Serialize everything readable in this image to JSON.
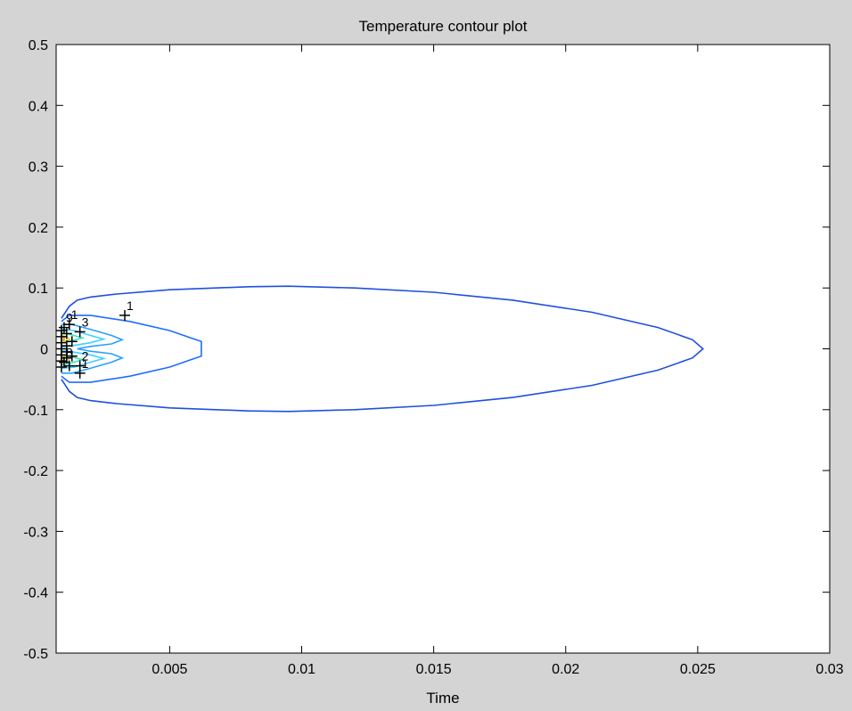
{
  "chart_data": {
    "type": "contour",
    "title": "Temperature contour plot",
    "xlabel": "Time",
    "ylabel": "",
    "xlim": [
      0.0007,
      0.03
    ],
    "ylim": [
      -0.5,
      0.5
    ],
    "x_ticks": [
      {
        "value": 0.005,
        "label": "0.005"
      },
      {
        "value": 0.01,
        "label": "0.01"
      },
      {
        "value": 0.015,
        "label": "0.015"
      },
      {
        "value": 0.02,
        "label": "0.02"
      },
      {
        "value": 0.025,
        "label": "0.025"
      },
      {
        "value": 0.03,
        "label": "0.03"
      }
    ],
    "y_ticks": [
      {
        "value": 0.5,
        "label": "0.5"
      },
      {
        "value": 0.4,
        "label": "0.4"
      },
      {
        "value": 0.3,
        "label": "0.3"
      },
      {
        "value": 0.2,
        "label": "0.2"
      },
      {
        "value": 0.1,
        "label": "0.1"
      },
      {
        "value": 0,
        "label": "0"
      },
      {
        "value": -0.1,
        "label": "-0.1"
      },
      {
        "value": -0.2,
        "label": "-0.2"
      },
      {
        "value": -0.3,
        "label": "-0.3"
      },
      {
        "value": -0.4,
        "label": "-0.4"
      },
      {
        "value": -0.5,
        "label": "-0.5"
      }
    ],
    "grid": false,
    "contours": [
      {
        "color": "#1f4fe0",
        "points": [
          [
            0.0009,
            0.05
          ],
          [
            0.0012,
            0.07
          ],
          [
            0.0015,
            0.08
          ],
          [
            0.002,
            0.085
          ],
          [
            0.003,
            0.09
          ],
          [
            0.005,
            0.097
          ],
          [
            0.008,
            0.102
          ],
          [
            0.0095,
            0.103
          ],
          [
            0.012,
            0.1
          ],
          [
            0.015,
            0.093
          ],
          [
            0.018,
            0.08
          ],
          [
            0.021,
            0.06
          ],
          [
            0.0235,
            0.035
          ],
          [
            0.0248,
            0.015
          ],
          [
            0.0252,
            0
          ],
          [
            0.0248,
            -0.015
          ],
          [
            0.0235,
            -0.035
          ],
          [
            0.021,
            -0.06
          ],
          [
            0.018,
            -0.08
          ],
          [
            0.015,
            -0.093
          ],
          [
            0.012,
            -0.1
          ],
          [
            0.0095,
            -0.103
          ],
          [
            0.008,
            -0.102
          ],
          [
            0.005,
            -0.097
          ],
          [
            0.003,
            -0.09
          ],
          [
            0.002,
            -0.085
          ],
          [
            0.0015,
            -0.08
          ],
          [
            0.0012,
            -0.07
          ],
          [
            0.0009,
            -0.05
          ]
        ]
      },
      {
        "color": "#1f6cff",
        "points": [
          [
            0.0009,
            0.045
          ],
          [
            0.0012,
            0.055
          ],
          [
            0.002,
            0.055
          ],
          [
            0.0035,
            0.045
          ],
          [
            0.005,
            0.03
          ],
          [
            0.0058,
            0.018
          ],
          [
            0.0062,
            0.012
          ],
          [
            0.0062,
            -0.012
          ],
          [
            0.0058,
            -0.018
          ],
          [
            0.005,
            -0.03
          ],
          [
            0.0035,
            -0.045
          ],
          [
            0.002,
            -0.055
          ],
          [
            0.0012,
            -0.055
          ],
          [
            0.0009,
            -0.045
          ]
        ]
      },
      {
        "color": "#2aa0ff",
        "points": [
          [
            0.0009,
            0.04
          ],
          [
            0.0013,
            0.04
          ],
          [
            0.002,
            0.032
          ],
          [
            0.0028,
            0.022
          ],
          [
            0.0032,
            0.015
          ],
          [
            0.0028,
            0.008
          ],
          [
            0.002,
            0.004
          ],
          [
            0.0015,
            0
          ],
          [
            0.002,
            -0.004
          ],
          [
            0.0028,
            -0.008
          ],
          [
            0.0032,
            -0.015
          ],
          [
            0.0028,
            -0.022
          ],
          [
            0.002,
            -0.032
          ],
          [
            0.0013,
            -0.04
          ],
          [
            0.0009,
            -0.04
          ]
        ]
      },
      {
        "color": "#3fd0ff",
        "points": [
          [
            0.0009,
            0.032
          ],
          [
            0.0014,
            0.03
          ],
          [
            0.002,
            0.022
          ],
          [
            0.0025,
            0.016
          ],
          [
            0.002,
            0.01
          ],
          [
            0.0013,
            0.005
          ],
          [
            0.0009,
            0.003
          ]
        ]
      },
      {
        "color": "#3fd0ff",
        "points": [
          [
            0.0009,
            -0.003
          ],
          [
            0.0013,
            -0.005
          ],
          [
            0.002,
            -0.01
          ],
          [
            0.0025,
            -0.016
          ],
          [
            0.002,
            -0.022
          ],
          [
            0.0014,
            -0.03
          ],
          [
            0.0009,
            -0.032
          ]
        ]
      },
      {
        "color": "#40e0c0",
        "points": [
          [
            0.0009,
            0.026
          ],
          [
            0.0012,
            0.024
          ],
          [
            0.0017,
            0.018
          ],
          [
            0.0012,
            0.012
          ],
          [
            0.0009,
            0.01
          ]
        ]
      },
      {
        "color": "#40e0c0",
        "points": [
          [
            0.0009,
            -0.01
          ],
          [
            0.0012,
            -0.012
          ],
          [
            0.0017,
            -0.018
          ],
          [
            0.0012,
            -0.024
          ],
          [
            0.0009,
            -0.026
          ]
        ]
      },
      {
        "color": "#d8e020",
        "points": [
          [
            0.0009,
            0.022
          ],
          [
            0.0011,
            0.02
          ],
          [
            0.0012,
            0.016
          ],
          [
            0.0011,
            0.013
          ],
          [
            0.0009,
            0.012
          ]
        ]
      },
      {
        "color": "#d8e020",
        "points": [
          [
            0.0009,
            -0.012
          ],
          [
            0.0011,
            -0.013
          ],
          [
            0.0012,
            -0.016
          ],
          [
            0.0011,
            -0.02
          ],
          [
            0.0009,
            -0.022
          ]
        ]
      },
      {
        "color": "#f08020",
        "points": [
          [
            0.0009,
            0.02
          ],
          [
            0.001,
            0.018
          ],
          [
            0.001,
            0.015
          ],
          [
            0.0009,
            0.014
          ]
        ]
      },
      {
        "color": "#f08020",
        "points": [
          [
            0.0009,
            -0.014
          ],
          [
            0.001,
            -0.015
          ],
          [
            0.001,
            -0.018
          ],
          [
            0.0009,
            -0.02
          ]
        ]
      }
    ],
    "labeled_markers": [
      {
        "x": 0.0033,
        "y": 0.055,
        "label": "1"
      },
      {
        "x": 0.0016,
        "y": 0.028,
        "label": "3"
      },
      {
        "x": 0.0016,
        "y": -0.028,
        "label": "2"
      },
      {
        "x": 0.0016,
        "y": -0.04,
        "label": "1"
      },
      {
        "x": 0.0012,
        "y": 0.04,
        "label": "1"
      },
      {
        "x": 0.001,
        "y": 0.035,
        "label": "9"
      },
      {
        "x": 0.001,
        "y": -0.022,
        "label": "8"
      }
    ],
    "markers": [
      {
        "x": 0.0009,
        "y": 0.03
      },
      {
        "x": 0.0009,
        "y": 0.02
      },
      {
        "x": 0.0009,
        "y": 0.01
      },
      {
        "x": 0.0009,
        "y": 0.0
      },
      {
        "x": 0.0009,
        "y": -0.01
      },
      {
        "x": 0.0009,
        "y": -0.02
      },
      {
        "x": 0.0009,
        "y": -0.03
      },
      {
        "x": 0.0011,
        "y": 0.025
      },
      {
        "x": 0.0011,
        "y": 0.005
      },
      {
        "x": 0.0011,
        "y": -0.005
      },
      {
        "x": 0.0011,
        "y": -0.015
      },
      {
        "x": 0.0012,
        "y": -0.028
      },
      {
        "x": 0.0013,
        "y": 0.012
      },
      {
        "x": 0.0013,
        "y": -0.012
      }
    ]
  }
}
